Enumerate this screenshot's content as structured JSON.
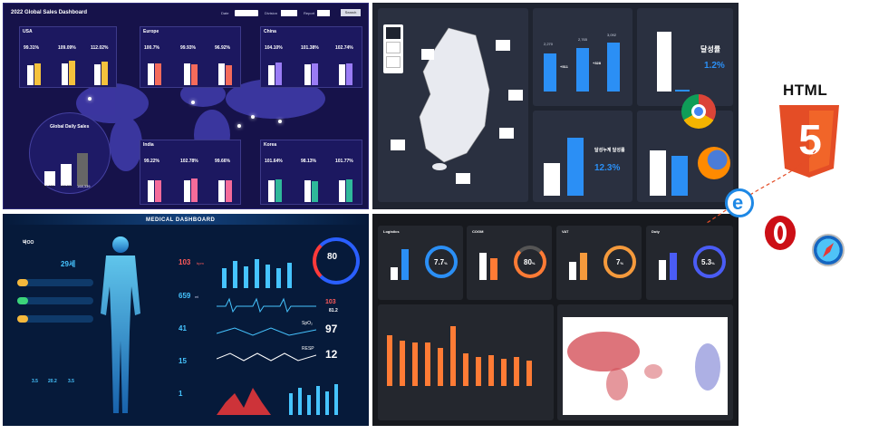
{
  "sales": {
    "title": "2022 Global Sales Dashboard",
    "date_label": "Date",
    "division_label": "Division",
    "report_label": "Report",
    "search_label": "Search",
    "usa": {
      "name": "USA",
      "v1": "99.31%",
      "v2": "109.09%",
      "v3": "112.02%"
    },
    "europe": {
      "name": "Europe",
      "v1": "100.7%",
      "v2": "99.93%",
      "v3": "96.92%"
    },
    "china": {
      "name": "China",
      "v1": "104.10%",
      "v2": "101.38%",
      "v3": "102.74%"
    },
    "india": {
      "name": "India",
      "v1": "99.22%",
      "v2": "102.78%",
      "v3": "99.66%"
    },
    "korea": {
      "name": "Korea",
      "v1": "101.64%",
      "v2": "98.13%",
      "v3": "101.77%"
    },
    "global": {
      "title": "Global Daily Sales",
      "b1": "61,620",
      "b2": "102,376",
      "b3": "168,339"
    }
  },
  "korea_dash": {
    "rate_label": "달성률",
    "rate_value": "1.2%",
    "rate2_label": "달성누계 달성률",
    "rate2_value": "12.3%",
    "v1": "2,270",
    "v2": "2,765",
    "v3": "3,092",
    "d1": "+511",
    "d2": "+328"
  },
  "medical": {
    "title": "MEDICAL DASHBOARD",
    "patient": "박OO",
    "age": "29세",
    "hr_value": "103",
    "hr_unit": "bpm",
    "v2_value": "659",
    "v2_unit": "ml",
    "v3_value": "41",
    "v4_value": "15",
    "v5_value": "1",
    "gauge_value": "80",
    "val_103": "103",
    "val_812": "81.2",
    "spo2_label": "SpO₂",
    "spo2_value": "97",
    "resp_label": "RESP",
    "resp_value": "12",
    "h1": "3.5",
    "h2": "20.2",
    "h3": "3.5"
  },
  "logistics": {
    "c1": {
      "name": "Logistics",
      "value": "7.7"
    },
    "c2": {
      "name": "COGM",
      "value": "80"
    },
    "c3": {
      "name": "VAT",
      "value": "7"
    },
    "c4": {
      "name": "Duty",
      "value": "5.3"
    },
    "pct": "%"
  },
  "html5": {
    "label": "HTML",
    "digit": "5"
  },
  "colors": {
    "accent_blue": "#2b8ff5",
    "orange": "#ff7b35",
    "html5": "#e44d26"
  }
}
